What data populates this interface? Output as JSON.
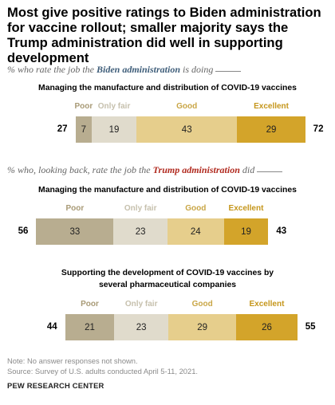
{
  "title": "Most give positive ratings to Biden administration for vaccine rollout; smaller majority says the Trump administration did well in supporting development",
  "colors": {
    "poor": "#b8ad90",
    "only_fair": "#e0dbcc",
    "good": "#e6ce8c",
    "excellent": "#d3a42a",
    "legend_poor": "#a89a76",
    "legend_only_fair": "#c6c0ad",
    "legend_good": "#c9a646",
    "legend_excellent": "#c5961b",
    "biden": "#3f5e7a",
    "trump": "#b12a1f"
  },
  "subtitles": [
    {
      "pre": "% who rate the job the ",
      "highlight": "Biden administration",
      "post": " is doing",
      "color_key": "biden"
    },
    {
      "pre": "% who, looking back, rate the job the ",
      "highlight": "Trump administration",
      "post": " did",
      "color_key": "trump"
    }
  ],
  "chart_data": [
    {
      "type": "bar",
      "stacked": "diverging",
      "title": "Managing the manufacture and distribution of COVID-19 vaccines",
      "categories": [
        "Poor",
        "Only fair",
        "Good",
        "Excellent"
      ],
      "values": [
        7,
        19,
        43,
        29
      ],
      "net_negative": 27,
      "net_positive": 72
    },
    {
      "type": "bar",
      "stacked": "diverging",
      "title": "Managing the manufacture and distribution of COVID-19 vaccines",
      "categories": [
        "Poor",
        "Only fair",
        "Good",
        "Excellent"
      ],
      "values": [
        33,
        23,
        24,
        19
      ],
      "net_negative": 56,
      "net_positive": 43
    },
    {
      "type": "bar",
      "stacked": "diverging",
      "title": "Supporting the development of COVID-19 vaccines by several pharmaceutical companies",
      "categories": [
        "Poor",
        "Only fair",
        "Good",
        "Excellent"
      ],
      "values": [
        21,
        23,
        29,
        26
      ],
      "net_negative": 44,
      "net_positive": 55
    }
  ],
  "notes": {
    "note": "Note: No answer responses not shown.",
    "source": "Source: Survey of U.S. adults conducted April 5-11, 2021.",
    "org": "PEW RESEARCH CENTER"
  }
}
